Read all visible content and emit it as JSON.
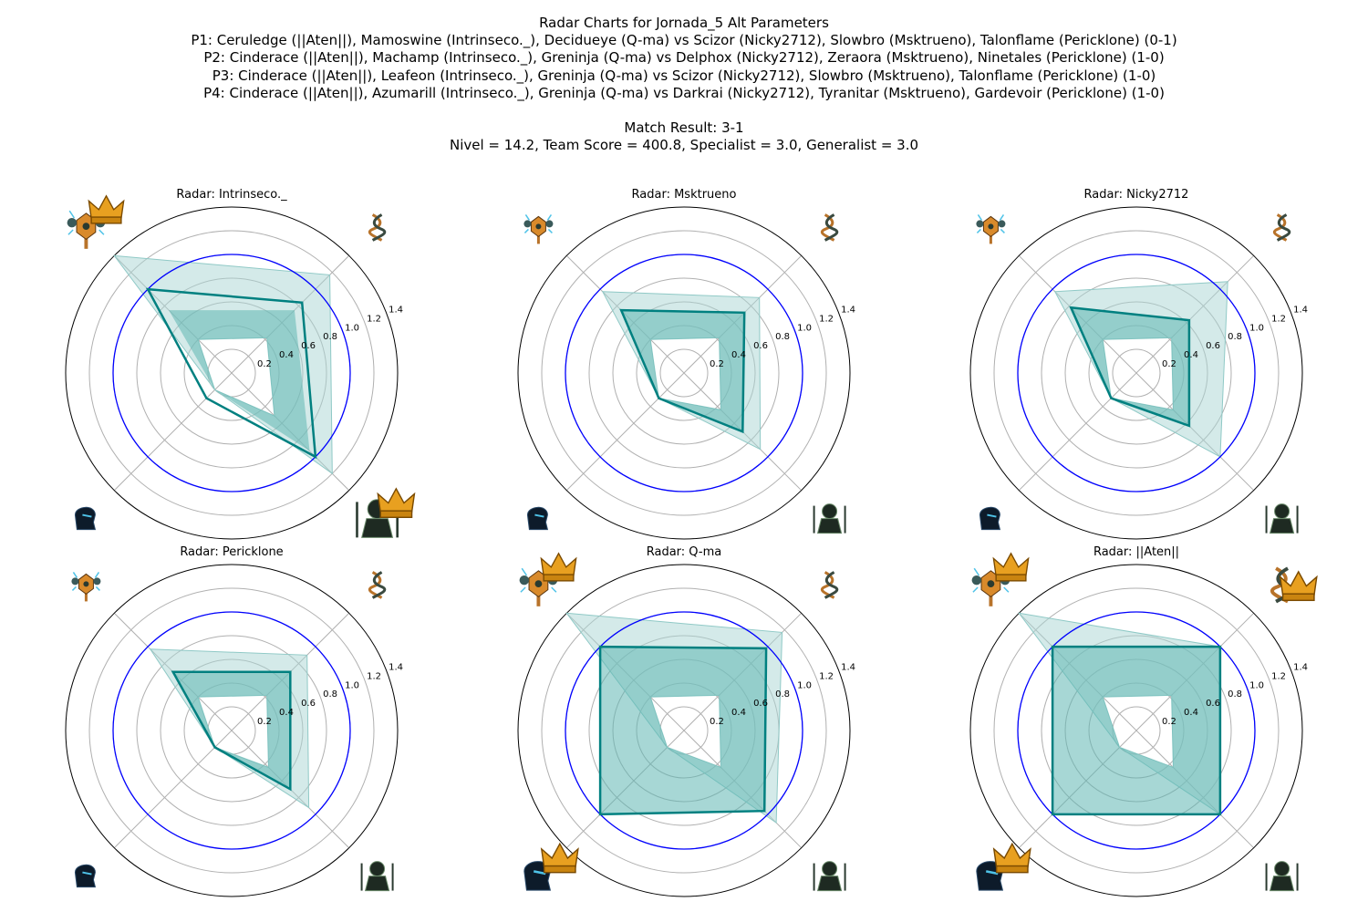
{
  "header": {
    "title": "Radar Charts for Jornada_5 Alt Parameters",
    "matchups": [
      "P1: Ceruledge (||Aten||), Mamoswine (Intrinseco._), Decidueye (Q-ma) vs Scizor (Nicky2712), Slowbro (Msktrueno), Talonflame (Pericklone) (0-1)",
      "P2: Cinderace (||Aten||), Machamp (Intrinseco._), Greninja (Q-ma) vs Delphox (Nicky2712), Zeraora (Msktrueno), Ninetales (Pericklone) (1-0)",
      "P3: Cinderace (||Aten||), Leafeon (Intrinseco._), Greninja (Q-ma) vs Scizor (Nicky2712), Slowbro (Msktrueno), Talonflame (Pericklone) (1-0)",
      "P4: Cinderace (||Aten||), Azumarill (Intrinseco._), Greninja (Q-ma) vs Darkrai (Nicky2712), Tyranitar (Msktrueno), Gardevoir (Pericklone) (1-0)"
    ],
    "result": "Match Result: 3-1",
    "stats": "Nivel = 14.2, Team Score = 400.8, Specialist = 3.0, Generalist = 3.0"
  },
  "colors": {
    "player_line": "#008080",
    "band_fill": "#5fb7b3",
    "range_fill": "#a9d5d3",
    "reference_circle": "#0000ff",
    "grid": "#b0b0b0",
    "crown": "#e8a020",
    "icon_dark": "#2a3a30"
  },
  "axis_icons": [
    "staff-crest-icon",
    "dna-helix-icon",
    "necromancer-icon",
    "hooded-head-icon"
  ],
  "chart_data": [
    {
      "type": "radar",
      "title": "Radar: Intrinseco._",
      "axes_angles_deg": [
        135,
        45,
        -45,
        -135
      ],
      "rlim": [
        0,
        1.4
      ],
      "rticks": [
        0.2,
        0.4,
        0.6,
        0.8,
        1.0,
        1.2,
        1.4
      ],
      "reference_circle": 1.0,
      "player_values": [
        1.0,
        0.84,
        1.0,
        0.3
      ],
      "range_min": [
        0.4,
        0.42,
        0.51,
        0.2
      ],
      "range_max": [
        1.4,
        1.17,
        1.2,
        0.2
      ],
      "band_inner": [
        0.75,
        0.75,
        0.93,
        0.2
      ],
      "crowns": [
        true,
        false,
        true,
        false
      ]
    },
    {
      "type": "radar",
      "title": "Radar: Msktrueno",
      "axes_angles_deg": [
        135,
        45,
        -45,
        -135
      ],
      "rlim": [
        0,
        1.4
      ],
      "rticks": [
        0.2,
        0.4,
        0.6,
        0.8,
        1.0,
        1.2,
        1.4
      ],
      "reference_circle": 1.0,
      "player_values": [
        0.75,
        0.72,
        0.7,
        0.3
      ],
      "range_min": [
        0.4,
        0.42,
        0.44,
        0.3
      ],
      "range_max": [
        0.97,
        0.9,
        0.91,
        0.3
      ],
      "band_inner": [
        0.75,
        0.72,
        0.7,
        0.3
      ],
      "crowns": [
        false,
        false,
        false,
        false
      ]
    },
    {
      "type": "radar",
      "title": "Radar: Nicky2712",
      "axes_angles_deg": [
        135,
        45,
        -45,
        -135
      ],
      "rlim": [
        0,
        1.4
      ],
      "rticks": [
        0.2,
        0.4,
        0.6,
        0.8,
        1.0,
        1.2,
        1.4
      ],
      "reference_circle": 1.0,
      "player_values": [
        0.78,
        0.63,
        0.63,
        0.3
      ],
      "range_min": [
        0.4,
        0.42,
        0.44,
        0.3
      ],
      "range_max": [
        0.97,
        1.09,
        1.0,
        0.3
      ],
      "band_inner": [
        0.78,
        0.63,
        0.63,
        0.3
      ],
      "crowns": [
        false,
        false,
        false,
        false
      ]
    },
    {
      "type": "radar",
      "title": "Radar: Pericklone",
      "axes_angles_deg": [
        135,
        45,
        -45,
        -135
      ],
      "rlim": [
        0,
        1.4
      ],
      "rticks": [
        0.2,
        0.4,
        0.6,
        0.8,
        1.0,
        1.2,
        1.4
      ],
      "reference_circle": 1.0,
      "player_values": [
        0.7,
        0.7,
        0.7,
        0.2
      ],
      "range_min": [
        0.4,
        0.42,
        0.44,
        0.2
      ],
      "range_max": [
        0.97,
        0.9,
        0.92,
        0.2
      ],
      "band_inner": [
        0.7,
        0.7,
        0.7,
        0.2
      ],
      "crowns": [
        false,
        false,
        false,
        false
      ]
    },
    {
      "type": "radar",
      "title": "Radar: Q-ma",
      "axes_angles_deg": [
        135,
        45,
        -45,
        -135
      ],
      "rlim": [
        0,
        1.4
      ],
      "rticks": [
        0.2,
        0.4,
        0.6,
        0.8,
        1.0,
        1.2,
        1.4
      ],
      "reference_circle": 1.0,
      "player_values": [
        1.0,
        0.98,
        0.96,
        1.0
      ],
      "range_min": [
        0.4,
        0.42,
        0.44,
        0.2
      ],
      "range_max": [
        1.4,
        1.17,
        1.1,
        0.2
      ],
      "band_inner": [
        1.0,
        0.98,
        0.96,
        1.0
      ],
      "crowns": [
        true,
        false,
        false,
        true
      ]
    },
    {
      "type": "radar",
      "title": "Radar: ||Aten||",
      "axes_angles_deg": [
        135,
        45,
        -45,
        -135
      ],
      "rlim": [
        0,
        1.4
      ],
      "rticks": [
        0.2,
        0.4,
        0.6,
        0.8,
        1.0,
        1.2,
        1.4
      ],
      "reference_circle": 1.0,
      "player_values": [
        1.0,
        1.0,
        1.0,
        1.0
      ],
      "range_min": [
        0.4,
        0.42,
        0.44,
        0.2
      ],
      "range_max": [
        1.4,
        1.0,
        1.0,
        0.2
      ],
      "band_inner": [
        1.0,
        1.0,
        1.0,
        1.0
      ],
      "crowns": [
        true,
        true,
        false,
        true
      ]
    }
  ]
}
